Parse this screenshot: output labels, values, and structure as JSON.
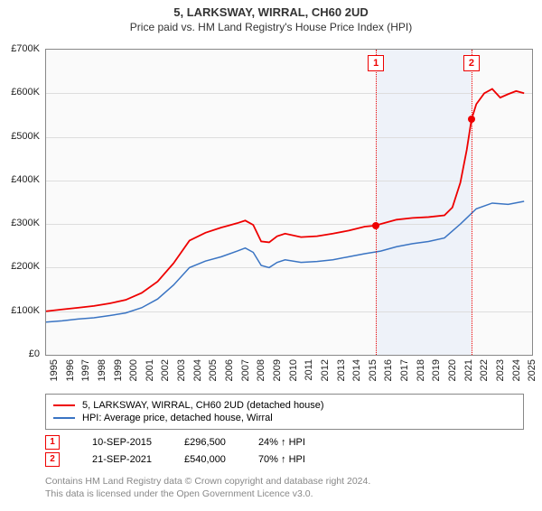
{
  "title": "5, LARKSWAY, WIRRAL, CH60 2UD",
  "subtitle": "Price paid vs. HM Land Registry's House Price Index (HPI)",
  "chart": {
    "type": "line",
    "background_color": "#fafafa",
    "border_color": "#888888",
    "grid_color": "#dddddd",
    "ylim": [
      0,
      700000
    ],
    "ytick_step": 100000,
    "y_tick_labels": [
      "£0",
      "£100K",
      "£200K",
      "£300K",
      "£400K",
      "£500K",
      "£600K",
      "£700K"
    ],
    "x_years": [
      1995,
      1996,
      1997,
      1998,
      1999,
      2000,
      2001,
      2002,
      2003,
      2004,
      2005,
      2006,
      2007,
      2008,
      2009,
      2010,
      2011,
      2012,
      2013,
      2014,
      2015,
      2016,
      2017,
      2018,
      2019,
      2020,
      2021,
      2022,
      2023,
      2024,
      2025
    ],
    "xlim": [
      1995,
      2025.5
    ],
    "label_fontsize": 11,
    "shade_band": {
      "start": 2015.7,
      "end": 2021.7,
      "color": "#e8eef8"
    },
    "series": [
      {
        "id": "price_paid",
        "label": "5, LARKSWAY, WIRRAL, CH60 2UD (detached house)",
        "color": "#ee0000",
        "line_width": 1.8,
        "data": [
          [
            1995,
            100000
          ],
          [
            1996,
            104000
          ],
          [
            1997,
            108000
          ],
          [
            1998,
            112000
          ],
          [
            1999,
            118000
          ],
          [
            2000,
            126000
          ],
          [
            2001,
            142000
          ],
          [
            2002,
            168000
          ],
          [
            2003,
            210000
          ],
          [
            2004,
            262000
          ],
          [
            2005,
            280000
          ],
          [
            2006,
            292000
          ],
          [
            2007,
            302000
          ],
          [
            2007.5,
            308000
          ],
          [
            2008,
            298000
          ],
          [
            2008.5,
            260000
          ],
          [
            2009,
            258000
          ],
          [
            2009.5,
            272000
          ],
          [
            2010,
            278000
          ],
          [
            2011,
            270000
          ],
          [
            2012,
            272000
          ],
          [
            2013,
            278000
          ],
          [
            2014,
            285000
          ],
          [
            2015,
            294000
          ],
          [
            2015.7,
            296500
          ],
          [
            2016,
            300000
          ],
          [
            2017,
            310000
          ],
          [
            2018,
            314000
          ],
          [
            2019,
            316000
          ],
          [
            2020,
            320000
          ],
          [
            2020.5,
            338000
          ],
          [
            2021,
            395000
          ],
          [
            2021.4,
            470000
          ],
          [
            2021.7,
            540000
          ],
          [
            2022,
            575000
          ],
          [
            2022.5,
            600000
          ],
          [
            2023,
            610000
          ],
          [
            2023.5,
            590000
          ],
          [
            2024,
            598000
          ],
          [
            2024.5,
            605000
          ],
          [
            2025,
            600000
          ]
        ]
      },
      {
        "id": "hpi",
        "label": "HPI: Average price, detached house, Wirral",
        "color": "#3a74c3",
        "line_width": 1.5,
        "data": [
          [
            1995,
            75000
          ],
          [
            1996,
            78000
          ],
          [
            1997,
            82000
          ],
          [
            1998,
            85000
          ],
          [
            1999,
            90000
          ],
          [
            2000,
            96000
          ],
          [
            2001,
            108000
          ],
          [
            2002,
            128000
          ],
          [
            2003,
            160000
          ],
          [
            2004,
            200000
          ],
          [
            2005,
            215000
          ],
          [
            2006,
            225000
          ],
          [
            2007,
            238000
          ],
          [
            2007.5,
            245000
          ],
          [
            2008,
            235000
          ],
          [
            2008.5,
            205000
          ],
          [
            2009,
            200000
          ],
          [
            2009.5,
            212000
          ],
          [
            2010,
            218000
          ],
          [
            2011,
            212000
          ],
          [
            2012,
            214000
          ],
          [
            2013,
            218000
          ],
          [
            2014,
            225000
          ],
          [
            2015,
            232000
          ],
          [
            2016,
            238000
          ],
          [
            2017,
            248000
          ],
          [
            2018,
            255000
          ],
          [
            2019,
            260000
          ],
          [
            2020,
            268000
          ],
          [
            2021,
            300000
          ],
          [
            2022,
            335000
          ],
          [
            2023,
            348000
          ],
          [
            2024,
            345000
          ],
          [
            2025,
            352000
          ]
        ]
      }
    ],
    "markers": [
      {
        "id": "1",
        "x": 2015.7,
        "y": 296500
      },
      {
        "id": "2",
        "x": 2021.7,
        "y": 540000
      }
    ]
  },
  "sales": [
    {
      "marker": "1",
      "date": "10-SEP-2015",
      "price": "£296,500",
      "delta": "24% ↑ HPI"
    },
    {
      "marker": "2",
      "date": "21-SEP-2021",
      "price": "£540,000",
      "delta": "70% ↑ HPI"
    }
  ],
  "attribution": {
    "line1": "Contains HM Land Registry data © Crown copyright and database right 2024.",
    "line2": "This data is licensed under the Open Government Licence v3.0."
  }
}
